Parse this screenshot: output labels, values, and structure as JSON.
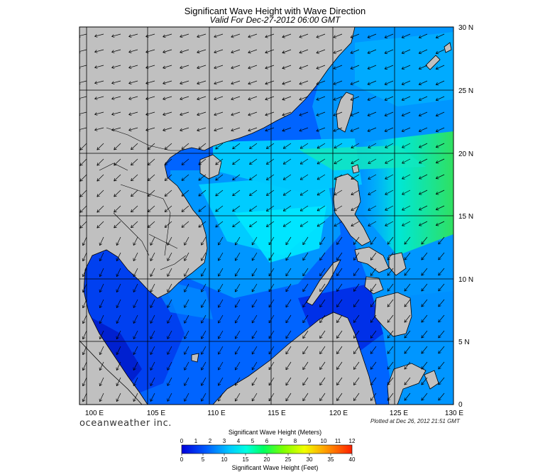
{
  "title": "Significant Wave Height with Wave Direction",
  "subtitle": "Valid For Dec-27-2012 06:00 GMT",
  "brand": "oceanweather inc.",
  "plotted": "Plotted at Dec 26, 2012 21:51 GMT",
  "map": {
    "lon_ticks": [
      "100 E",
      "105 E",
      "110 E",
      "115 E",
      "120 E",
      "125 E",
      "130 E"
    ],
    "lat_ticks": [
      "30 N",
      "25 N",
      "20 N",
      "15 N",
      "10 N",
      "5 N",
      "0"
    ],
    "lon_range": [
      99,
      130
    ],
    "lat_range": [
      0,
      30
    ],
    "grid": true,
    "land_color": "#c0c0c0",
    "colors": {
      "deep_blue": "#0000c8",
      "blue": "#0050ff",
      "light_blue": "#0096ff",
      "cyan": "#00d2ff",
      "aqua": "#00f0e0",
      "green": "#20e070"
    }
  },
  "colorbar": {
    "top_title": "Significant Wave Height (Meters)",
    "bottom_title": "Significant Wave Height (Feet)",
    "meters": [
      "0",
      "1",
      "2",
      "3",
      "4",
      "5",
      "6",
      "7",
      "8",
      "9",
      "10",
      "11",
      "12"
    ],
    "feet": [
      "0",
      "5",
      "10",
      "15",
      "20",
      "25",
      "30",
      "35",
      "40"
    ]
  }
}
